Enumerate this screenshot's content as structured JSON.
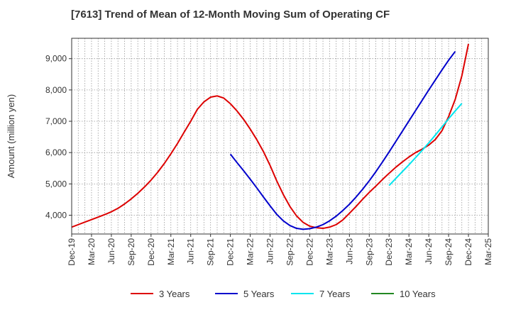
{
  "chart_data": {
    "type": "line",
    "title": "[7613]  Trend of Mean of 12-Month Moving Sum of Operating CF",
    "xlabel": "",
    "ylabel": "Amount (million yen)",
    "ylim": [
      3400,
      9650
    ],
    "yticks": [
      4000,
      5000,
      6000,
      7000,
      8000,
      9000
    ],
    "ytick_labels": [
      "4,000",
      "5,000",
      "6,000",
      "7,000",
      "8,000",
      "9,000"
    ],
    "x_start_month_index": 0,
    "x_end_month_index": 63,
    "xticks": [
      {
        "month_index": 0,
        "label": "Dec-19"
      },
      {
        "month_index": 3,
        "label": "Mar-20"
      },
      {
        "month_index": 6,
        "label": "Jun-20"
      },
      {
        "month_index": 9,
        "label": "Sep-20"
      },
      {
        "month_index": 12,
        "label": "Dec-20"
      },
      {
        "month_index": 15,
        "label": "Mar-21"
      },
      {
        "month_index": 18,
        "label": "Jun-21"
      },
      {
        "month_index": 21,
        "label": "Sep-21"
      },
      {
        "month_index": 24,
        "label": "Dec-21"
      },
      {
        "month_index": 27,
        "label": "Mar-22"
      },
      {
        "month_index": 30,
        "label": "Jun-22"
      },
      {
        "month_index": 33,
        "label": "Sep-22"
      },
      {
        "month_index": 36,
        "label": "Dec-22"
      },
      {
        "month_index": 39,
        "label": "Mar-23"
      },
      {
        "month_index": 42,
        "label": "Jun-23"
      },
      {
        "month_index": 45,
        "label": "Sep-23"
      },
      {
        "month_index": 48,
        "label": "Dec-23"
      },
      {
        "month_index": 51,
        "label": "Mar-24"
      },
      {
        "month_index": 54,
        "label": "Jun-24"
      },
      {
        "month_index": 57,
        "label": "Sep-24"
      },
      {
        "month_index": 60,
        "label": "Dec-24"
      },
      {
        "month_index": 63,
        "label": "Mar-25"
      }
    ],
    "grid": true,
    "legend_position": "bottom",
    "series": [
      {
        "name": "3 Years",
        "color": "#dd0000",
        "start_month_index": 0,
        "values": [
          3620,
          3700,
          3780,
          3860,
          3940,
          4020,
          4110,
          4220,
          4360,
          4520,
          4700,
          4900,
          5120,
          5370,
          5650,
          5960,
          6290,
          6650,
          7000,
          7380,
          7620,
          7770,
          7810,
          7740,
          7560,
          7330,
          7060,
          6750,
          6410,
          6030,
          5590,
          5100,
          4660,
          4280,
          3980,
          3770,
          3650,
          3600,
          3580,
          3620,
          3700,
          3850,
          4060,
          4280,
          4510,
          4730,
          4930,
          5140,
          5340,
          5530,
          5700,
          5860,
          6000,
          6110,
          6240,
          6420,
          6700,
          7150,
          7700,
          8450,
          9470
        ]
      },
      {
        "name": "5 Years",
        "color": "#0000cc",
        "start_month_index": 24,
        "values": [
          5950,
          5680,
          5420,
          5150,
          4870,
          4580,
          4300,
          4030,
          3820,
          3670,
          3580,
          3550,
          3570,
          3620,
          3700,
          3820,
          3970,
          4150,
          4350,
          4580,
          4830,
          5100,
          5390,
          5700,
          6020,
          6350,
          6680,
          7010,
          7340,
          7670,
          8000,
          8320,
          8640,
          8950,
          9230
        ]
      },
      {
        "name": "7 Years",
        "color": "#00e5ee",
        "start_month_index": 48,
        "values": [
          4950,
          5170,
          5390,
          5610,
          5840,
          6070,
          6310,
          6560,
          6820,
          7080,
          7330,
          7570
        ]
      },
      {
        "name": "10 Years",
        "color": "#228822",
        "start_month_index": 0,
        "values": []
      }
    ]
  }
}
